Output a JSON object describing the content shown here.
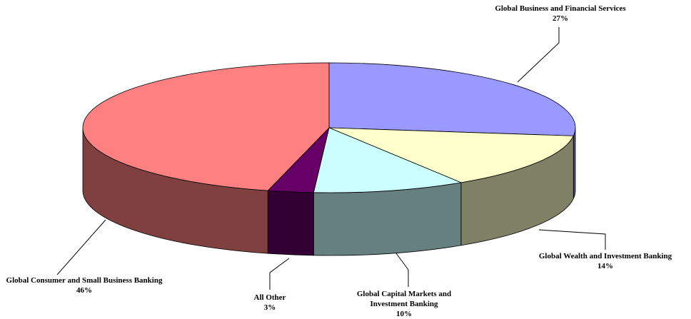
{
  "chart_data": {
    "type": "pie3d",
    "categories": [
      "Global Business and Financial Services",
      "Global Wealth and Investment Banking",
      "Global Capital Markets and Investment Banking",
      "All Other",
      "Global Consumer and Small Business Banking"
    ],
    "values": [
      27,
      14,
      10,
      3,
      46
    ],
    "value_labels": [
      "27%",
      "14%",
      "10%",
      "3%",
      "46%"
    ],
    "colors": [
      "#9999ff",
      "#ffffcc",
      "#ccffff",
      "#660066",
      "#ff8080"
    ]
  }
}
